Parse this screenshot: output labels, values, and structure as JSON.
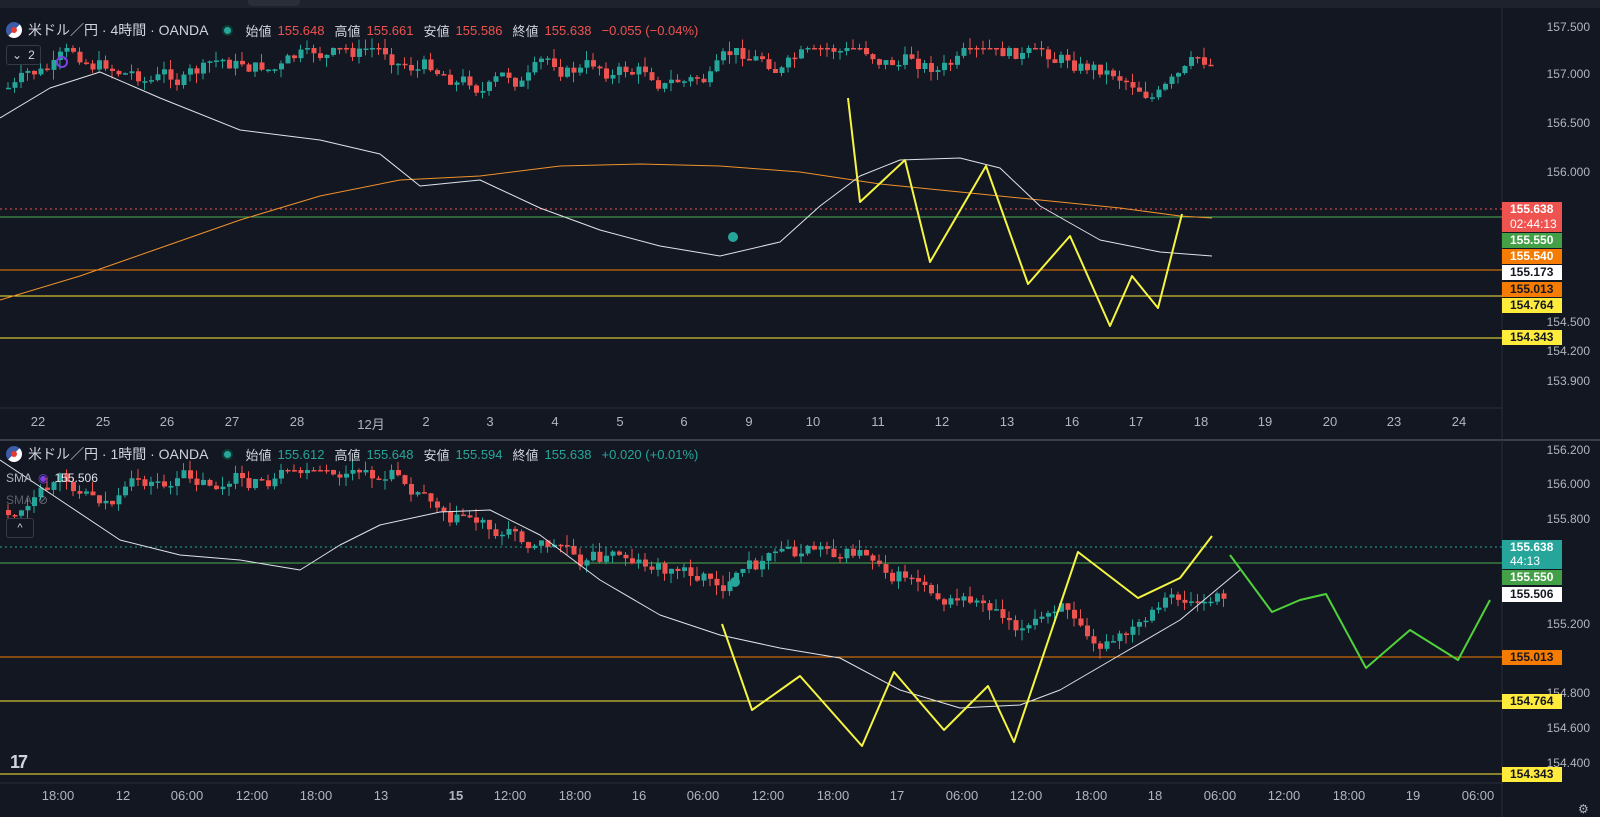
{
  "colors": {
    "up": "#26a69a",
    "down": "#ef5350",
    "bg": "#131722",
    "sma_short": "#e0e3eb",
    "sma_long": "#f0922b",
    "orange_line": "#f57c00",
    "yellow_line": "#ffeb3b",
    "green_line": "#4caf50",
    "drawing_yellow": "#f5f542",
    "drawing_green": "#4fd23a"
  },
  "top_pane": {
    "symbol": "米ドル／円 · 4時間 · OANDA",
    "open_label": "始値",
    "open": "155.648",
    "high_label": "高値",
    "high": "155.661",
    "low_label": "安値",
    "low": "155.586",
    "close_label": "終値",
    "close": "155.638",
    "change": "−0.055 (−0.04%)",
    "sub_count": "2",
    "y_ticks": [
      "157.500",
      "157.000",
      "156.500",
      "156.000",
      "154.500",
      "154.200",
      "153.900"
    ],
    "x_ticks": [
      "22",
      "25",
      "26",
      "27",
      "28",
      "12月",
      "2",
      "3",
      "4",
      "5",
      "6",
      "9",
      "10",
      "11",
      "12",
      "13",
      "16",
      "17",
      "18",
      "19",
      "20",
      "23",
      "24"
    ],
    "price_labels": [
      {
        "text": "155.638",
        "kind": "current"
      },
      {
        "text": "02:44:13",
        "kind": "countdown"
      },
      {
        "text": "155.550",
        "kind": "green"
      },
      {
        "text": "155.540",
        "kind": "orange"
      },
      {
        "text": "155.173",
        "kind": "white"
      },
      {
        "text": "155.013",
        "kind": "orange"
      },
      {
        "text": "154.764",
        "kind": "yellow"
      },
      {
        "text": "154.343",
        "kind": "yellow"
      }
    ]
  },
  "bottom_pane": {
    "symbol": "米ドル／円 · 1時間 · OANDA",
    "open_label": "始値",
    "open": "155.612",
    "high_label": "高値",
    "high": "155.648",
    "low_label": "安値",
    "low": "155.594",
    "close_label": "終値",
    "close": "155.638",
    "change": "+0.020 (+0.01%)",
    "sma1_label": "SMA",
    "sma1_value": "155.506",
    "sma2_label": "SMA",
    "y_ticks": [
      "156.200",
      "156.000",
      "155.800",
      "155.200",
      "154.800",
      "154.600",
      "154.400"
    ],
    "x_ticks": [
      "18:00",
      "12",
      "06:00",
      "12:00",
      "18:00",
      "13",
      "15",
      "12:00",
      "18:00",
      "16",
      "06:00",
      "12:00",
      "18:00",
      "17",
      "06:00",
      "12:00",
      "18:00",
      "18",
      "06:00",
      "12:00",
      "18:00",
      "19",
      "06:00"
    ],
    "price_labels": [
      {
        "text": "155.638",
        "kind": "current-green"
      },
      {
        "text": "44:13",
        "kind": "countdown-green"
      },
      {
        "text": "155.550",
        "kind": "green"
      },
      {
        "text": "155.506",
        "kind": "white"
      },
      {
        "text": "155.013",
        "kind": "orange"
      },
      {
        "text": "154.764",
        "kind": "yellow"
      },
      {
        "text": "154.343",
        "kind": "yellow"
      }
    ]
  }
}
